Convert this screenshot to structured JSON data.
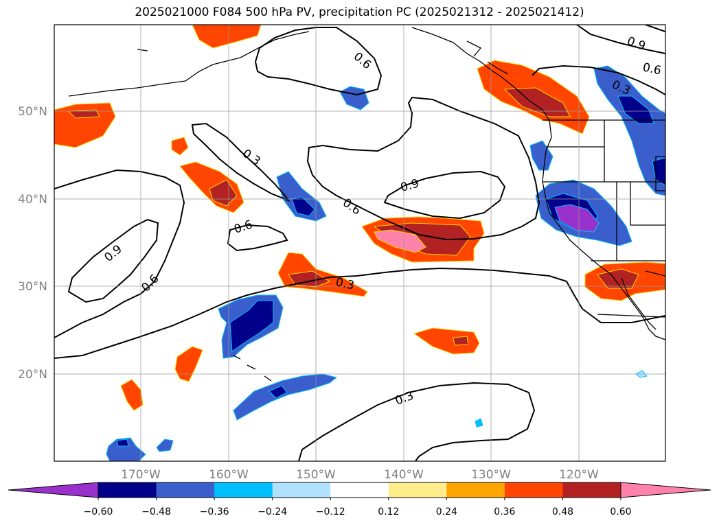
{
  "title": "2025021000 F084 500 hPa PV, precipitation PC (2025021312 - 2025021412)",
  "lon_ticks": [
    "170°W",
    "160°W",
    "150°W",
    "140°W",
    "130°W",
    "120°W"
  ],
  "lat_ticks": [
    "50°N",
    "40°N",
    "30°N",
    "20°N"
  ],
  "contour_labels": [
    "0.9",
    "0.6",
    "0.3",
    "0.6",
    "0.3",
    "0.9",
    "0.6",
    "0.6",
    "0.9",
    "0.6",
    "0.3",
    "0.3"
  ],
  "colorbar": {
    "ticks": [
      "−0.60",
      "−0.48",
      "−0.36",
      "−0.24",
      "−0.12",
      "0.12",
      "0.24",
      "0.36",
      "0.48",
      "0.60"
    ],
    "colors": [
      "#9932cc",
      "#00008b",
      "#3a5fcd",
      "#00bfff",
      "#b0e2ff",
      "#ffffff",
      "#ffec8b",
      "#ffa500",
      "#ff4500",
      "#b22222",
      "#ff82ab"
    ]
  }
}
